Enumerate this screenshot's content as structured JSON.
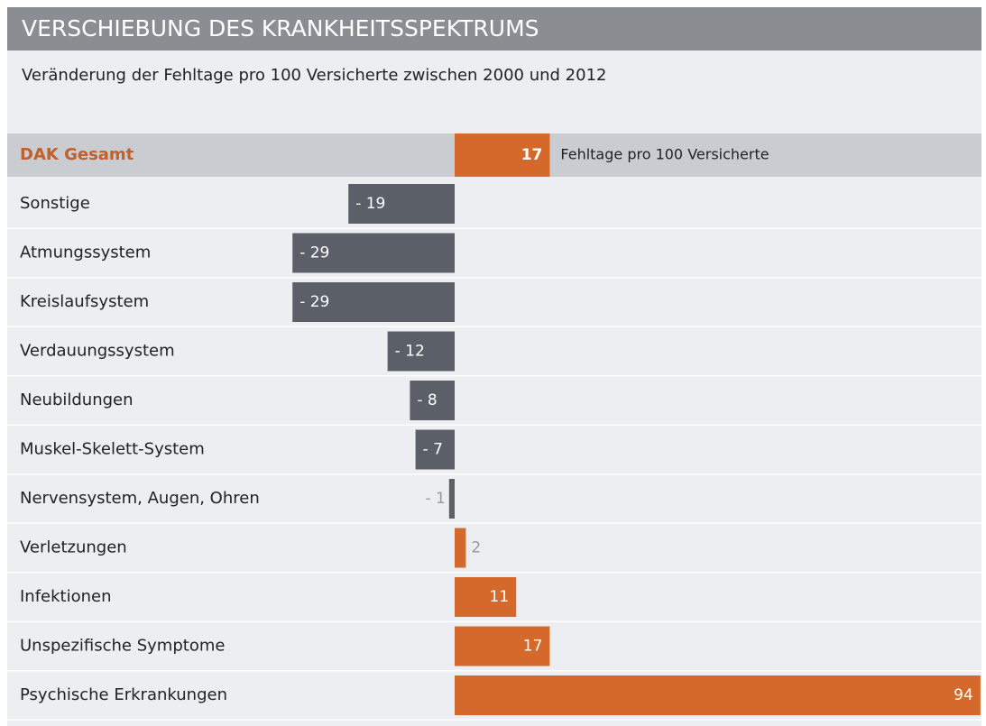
{
  "chart_data": {
    "type": "bar",
    "title": "VERSCHIEBUNG DES KRANKHEITSSPEKTRUMS",
    "subtitle": "Veränderung der Fehltage pro 100 Versicherte zwischen 2000 und 2012",
    "annotation": "Fehltage pro 100 Versicherte",
    "categories": [
      "DAK Gesamt",
      "Sonstige",
      "Atmungssystem",
      "Kreislaufsystem",
      "Verdauungssystem",
      "Neubildungen",
      "Muskel-Skelett-System",
      "Nervensystem, Augen, Ohren",
      "Verletzungen",
      "Infektionen",
      "Unspezifische Symptome",
      "Psychische Erkrankungen"
    ],
    "values": [
      17,
      -19,
      -29,
      -29,
      -12,
      -8,
      -7,
      -1,
      2,
      11,
      17,
      94
    ],
    "value_labels": [
      "17",
      "- 19",
      "- 29",
      "- 29",
      "- 12",
      "- 8",
      "- 7",
      "- 1",
      "2",
      "11",
      "17",
      "94"
    ],
    "positive_color": "#d4692b",
    "negative_color": "#5b6068"
  }
}
